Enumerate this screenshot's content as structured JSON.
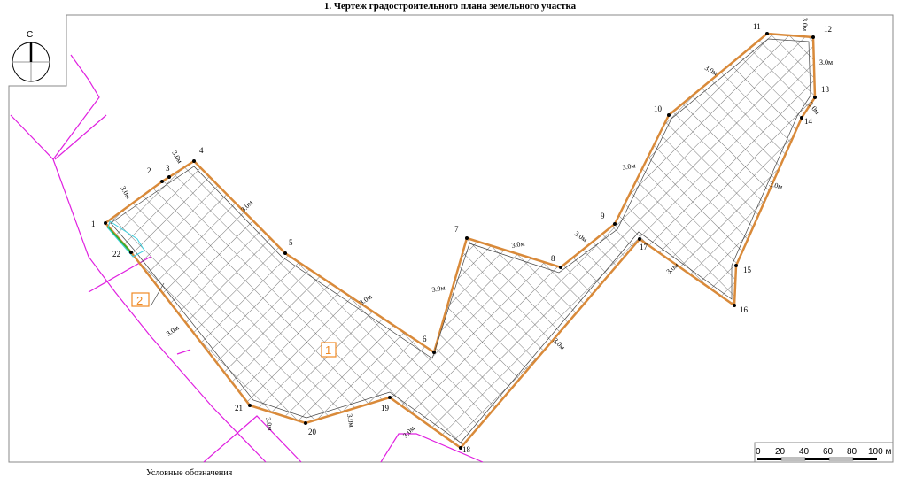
{
  "title": "1. Чертеж градостроительного плана земельного участка",
  "legend_title": "Условные обозначения",
  "compass": {
    "north_label": "С"
  },
  "zones": [
    {
      "label": "1",
      "color": "#f08a24"
    },
    {
      "label": "2",
      "color": "#f08a24"
    }
  ],
  "points": [
    "1",
    "2",
    "3",
    "4",
    "5",
    "6",
    "7",
    "8",
    "9",
    "10",
    "11",
    "12",
    "13",
    "14",
    "15",
    "16",
    "17",
    "18",
    "19",
    "20",
    "21",
    "22"
  ],
  "setback_label": "3.0м",
  "scale_bar": {
    "ticks": [
      "0",
      "20",
      "40",
      "60",
      "80",
      "100 м"
    ]
  },
  "colors": {
    "boundary": "#d98a3a",
    "utilities": "#e020e0",
    "hatch": "#555555",
    "frame": "#888888",
    "setback_zone2": "#40d0e0",
    "green_segment": "#30b030"
  }
}
